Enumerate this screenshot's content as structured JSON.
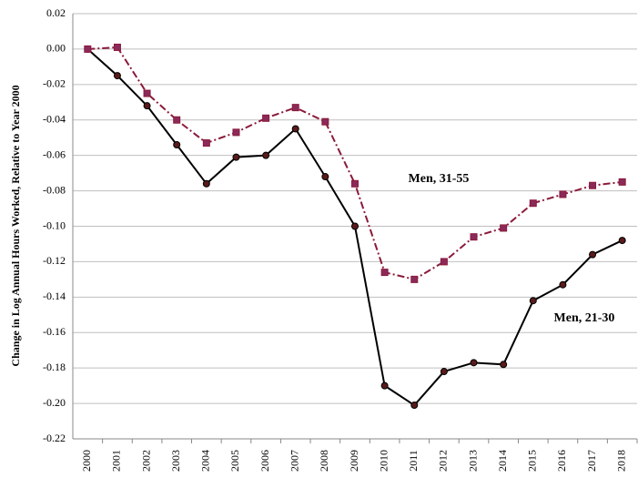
{
  "chart_data": {
    "type": "line",
    "y_label": "Change in Log Annual Hours Worked, Relative to Year 2000",
    "categories": [
      "2000",
      "2001",
      "2002",
      "2003",
      "2004",
      "2005",
      "2006",
      "2007",
      "2008",
      "2009",
      "2010",
      "2011",
      "2012",
      "2013",
      "2014",
      "2015",
      "2016",
      "2017",
      "2018"
    ],
    "series": [
      {
        "name": "Men, 21-30",
        "color": "#000000",
        "marker_color": "#5a1a1a",
        "values": [
          0,
          -0.015,
          -0.032,
          -0.054,
          -0.076,
          -0.061,
          -0.06,
          -0.045,
          -0.072,
          -0.1,
          -0.19,
          -0.201,
          -0.182,
          -0.177,
          -0.178,
          -0.142,
          -0.133,
          -0.116,
          -0.108
        ]
      },
      {
        "name": "Men, 31-55",
        "color": "#8b1a3a",
        "marker_color": "#8b2a5a",
        "values": [
          0,
          0.001,
          -0.025,
          -0.04,
          -0.053,
          -0.047,
          -0.039,
          -0.033,
          -0.041,
          -0.076,
          -0.126,
          -0.13,
          -0.12,
          -0.106,
          -0.101,
          -0.087,
          -0.082,
          -0.077,
          -0.075
        ]
      }
    ],
    "ylim": [
      -0.22,
      0.02
    ],
    "yticks": [
      0.02,
      {
        "value": 0,
        "label": "0.00"
      },
      -0.02,
      -0.04,
      -0.06,
      -0.08,
      {
        "value": -0.1,
        "label": "-0.10"
      },
      -0.12,
      -0.14,
      -0.16,
      -0.18,
      {
        "value": -0.2,
        "label": "-0.20"
      },
      -0.22
    ],
    "grid": true
  }
}
